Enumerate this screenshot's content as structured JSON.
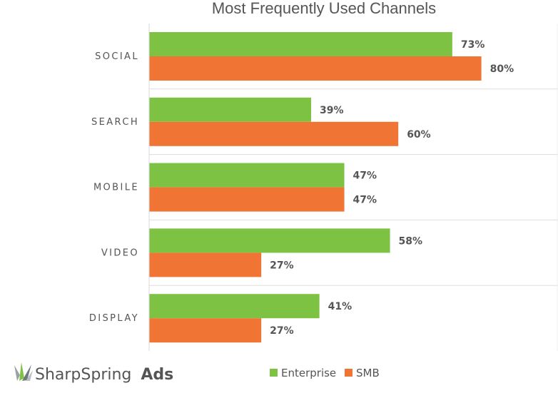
{
  "chart_data": {
    "type": "bar",
    "orientation": "horizontal",
    "title": "Most Frequently Used Channels",
    "categories": [
      "SOCIAL",
      "SEARCH",
      "MOBILE",
      "VIDEO",
      "DISPLAY"
    ],
    "series": [
      {
        "name": "Enterprise",
        "color": "#7dc242",
        "values": [
          73,
          39,
          47,
          58,
          41
        ]
      },
      {
        "name": "SMB",
        "color": "#f07535",
        "values": [
          80,
          60,
          47,
          27,
          27
        ]
      }
    ],
    "value_suffix": "%",
    "xlim": [
      0,
      100
    ],
    "grid": false,
    "legend_position": "bottom-center"
  },
  "brand": {
    "name": "SharpSpring",
    "suffix": "Ads",
    "logo_icon": "sharpspring-leaf-icon",
    "text_color": "#555555"
  },
  "colors": {
    "title": "#555555",
    "axis_label": "#555555",
    "data_label": "#555555",
    "separator": "#dddddd"
  }
}
